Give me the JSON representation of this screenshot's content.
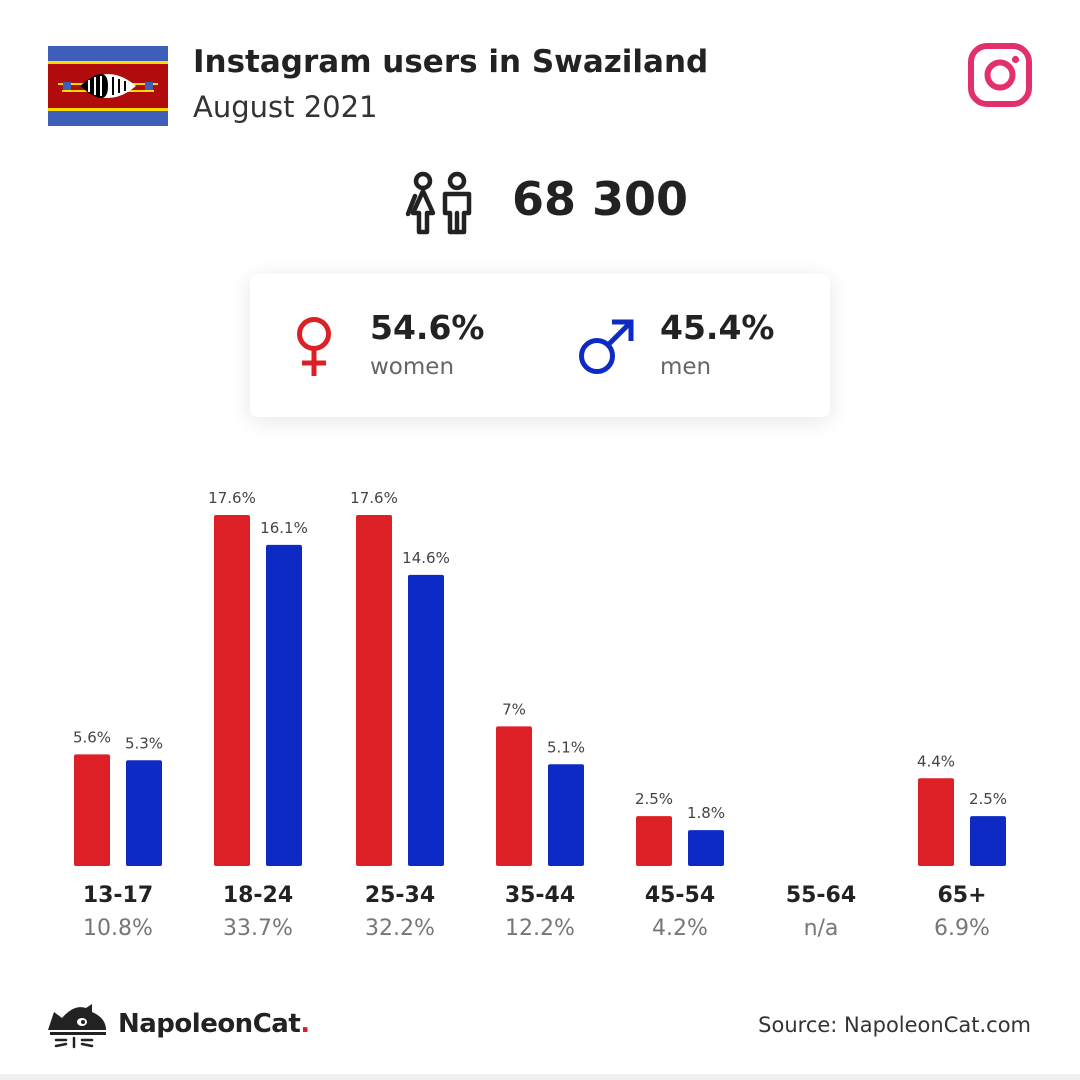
{
  "header": {
    "title": "Instagram users in Swaziland",
    "subtitle": "August 2021"
  },
  "summary": {
    "total_users": "68 300",
    "women_pct": "54.6%",
    "women_label": "women",
    "men_pct": "45.4%",
    "men_label": "men"
  },
  "colors": {
    "women": "#dd1f26",
    "men": "#0e2ac4",
    "instagram": "#e1306c"
  },
  "icons": [
    "flag-swaziland",
    "instagram-icon",
    "users-icon",
    "female-icon",
    "male-icon",
    "napoleoncat-logo"
  ],
  "chart_data": {
    "type": "bar",
    "categories": [
      "13-17",
      "18-24",
      "25-34",
      "35-44",
      "45-54",
      "55-64",
      "65+"
    ],
    "category_totals": [
      "10.8%",
      "33.7%",
      "32.2%",
      "12.2%",
      "4.2%",
      "n/a",
      "6.9%"
    ],
    "series": [
      {
        "name": "women",
        "values": [
          5.6,
          17.6,
          17.6,
          7,
          2.5,
          null,
          4.4
        ],
        "labels": [
          "5.6%",
          "17.6%",
          "17.6%",
          "7%",
          "2.5%",
          "",
          "4.4%"
        ]
      },
      {
        "name": "men",
        "values": [
          5.3,
          16.1,
          14.6,
          5.1,
          1.8,
          null,
          2.5
        ],
        "labels": [
          "5.3%",
          "16.1%",
          "14.6%",
          "5.1%",
          "1.8%",
          "",
          "2.5%"
        ]
      }
    ],
    "ylim": [
      0,
      17.6
    ],
    "grid": false,
    "legend": "none"
  },
  "footer": {
    "brand_name": "NapoleonCat",
    "brand_dot": ".",
    "source": "Source: NapoleonCat.com"
  }
}
